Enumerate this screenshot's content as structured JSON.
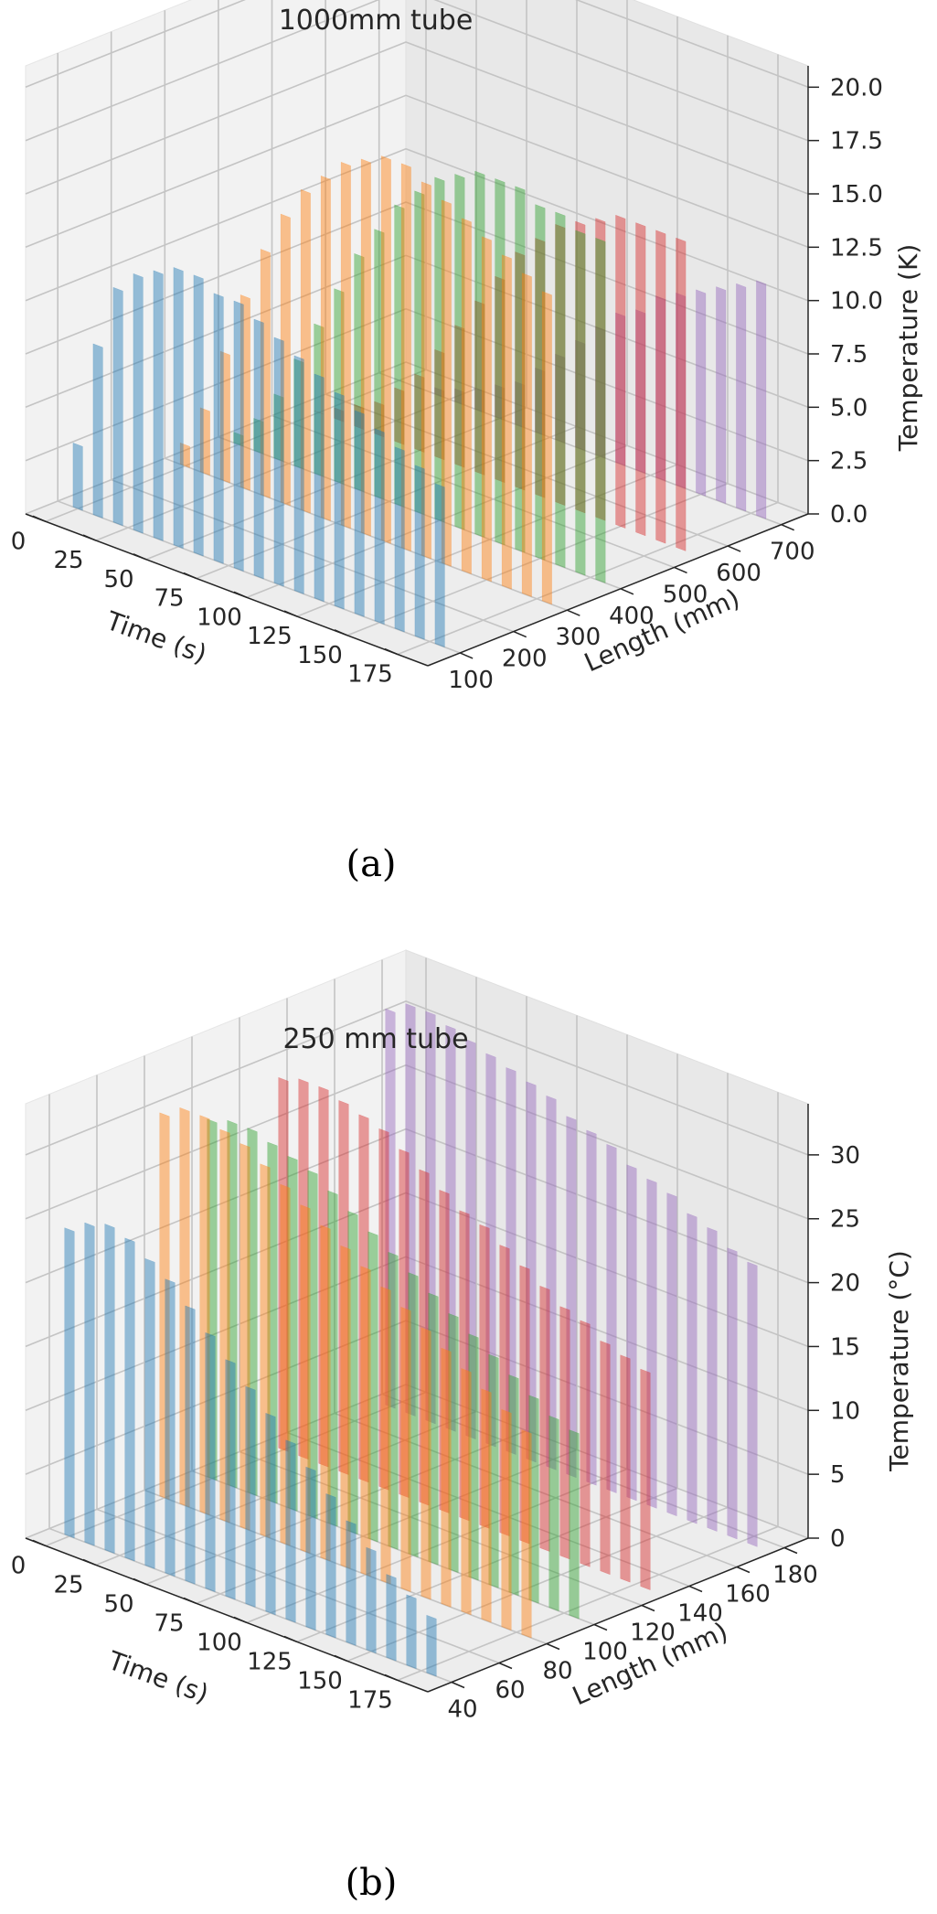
{
  "colors": {
    "series": [
      "#1f77b4",
      "#ff7f0e",
      "#2ca02c",
      "#d62728",
      "#9467bd"
    ],
    "pane": "#ececec",
    "grid": "#c8c8c8",
    "text": "#262626"
  },
  "chart_data": [
    {
      "type": "bar3d",
      "title": "1000mm tube",
      "caption": "(a)",
      "xlabel": "Time (s)",
      "ylabel": "Length (mm)",
      "zlabel": "Temperature (K)",
      "x_ticks": [
        "0",
        "25",
        "50",
        "75",
        "100",
        "125",
        "150",
        "175"
      ],
      "y_ticks": [
        "100",
        "200",
        "300",
        "400",
        "500",
        "600",
        "700"
      ],
      "z_ticks": [
        "0.0",
        "2.5",
        "5.0",
        "7.5",
        "10.0",
        "12.5",
        "15.0",
        "17.5",
        "20.0"
      ],
      "xlim": [
        -10,
        190
      ],
      "ylim": [
        40,
        750
      ],
      "zlim": [
        0,
        21
      ],
      "x": [
        0,
        10,
        20,
        30,
        40,
        50,
        60,
        70,
        80,
        90,
        100,
        110,
        120,
        130,
        140,
        150,
        160,
        170,
        180
      ],
      "series": [
        {
          "y": 100,
          "values": [
            3,
            8,
            11,
            12,
            12.5,
            13,
            13,
            12.5,
            12.5,
            12,
            11.5,
            11,
            10.5,
            10,
            9.5,
            9,
            8.5,
            8,
            7.5
          ]
        },
        {
          "y": 300,
          "values": [
            1,
            3,
            6,
            9,
            11.5,
            13.5,
            15,
            16,
            17,
            17.5,
            18,
            18,
            17.5,
            17,
            16.5,
            16,
            15.5,
            15,
            14.5
          ]
        },
        {
          "y": 400,
          "values": [
            0.5,
            1.5,
            3,
            5,
            7,
            9,
            11,
            12.5,
            14,
            15,
            16,
            16.5,
            17,
            17,
            17,
            16.5,
            16.5,
            16,
            16
          ]
        },
        {
          "y": 550,
          "values": [
            0,
            0.5,
            1,
            1.5,
            2.5,
            3.5,
            5,
            6.5,
            8,
            9.5,
            11,
            12,
            13,
            13.5,
            14,
            14.5,
            14.5,
            14.5,
            14.5
          ]
        },
        {
          "y": 700,
          "values": [
            0,
            0,
            0.3,
            0.6,
            1,
            1.5,
            2,
            3,
            4,
            5,
            6,
            7,
            7.5,
            8.5,
            9,
            9.5,
            10,
            10.5,
            11
          ]
        }
      ]
    },
    {
      "type": "bar3d",
      "title": "250 mm tube",
      "caption": "(b)",
      "xlabel": "Time (s)",
      "ylabel": "Length (mm)",
      "zlabel": "Temperature (°C)",
      "x_ticks": [
        "0",
        "25",
        "50",
        "75",
        "100",
        "125",
        "150",
        "175"
      ],
      "y_ticks": [
        "40",
        "60",
        "80",
        "100",
        "120",
        "140",
        "160",
        "180"
      ],
      "z_ticks": [
        "0",
        "5",
        "10",
        "15",
        "20",
        "25",
        "30"
      ],
      "xlim": [
        -10,
        190
      ],
      "ylim": [
        30,
        190
      ],
      "zlim": [
        0,
        34
      ],
      "x": [
        0,
        10,
        20,
        30,
        40,
        50,
        60,
        70,
        80,
        90,
        100,
        110,
        120,
        130,
        140,
        150,
        160,
        170,
        180
      ],
      "series": [
        {
          "y": 40,
          "values": [
            24,
            25,
            25.5,
            25,
            24,
            23,
            21.5,
            20,
            18.5,
            17,
            15.5,
            14,
            12.5,
            11,
            9.5,
            8,
            6.5,
            5.5,
            4.5
          ]
        },
        {
          "y": 80,
          "values": [
            30,
            31,
            31,
            30.5,
            30,
            29,
            28,
            27,
            26,
            25,
            24,
            23,
            22,
            21,
            20,
            19,
            18,
            17,
            16
          ]
        },
        {
          "y": 100,
          "values": [
            28,
            28.5,
            28.5,
            28,
            27.5,
            27,
            26,
            25,
            24,
            23,
            22,
            21,
            20,
            19,
            18,
            17,
            16,
            15,
            14.5
          ]
        },
        {
          "y": 130,
          "values": [
            29,
            29.5,
            29.5,
            29,
            28.5,
            28,
            27,
            26,
            25,
            24,
            23.5,
            22.5,
            21.5,
            20.5,
            19.5,
            19,
            18,
            17.5,
            17
          ]
        },
        {
          "y": 175,
          "values": [
            31,
            32,
            32,
            31.5,
            31,
            30.5,
            30,
            29.5,
            29,
            28,
            27.5,
            27,
            26,
            25.5,
            25,
            24,
            23.5,
            22.5,
            22
          ]
        }
      ]
    }
  ]
}
